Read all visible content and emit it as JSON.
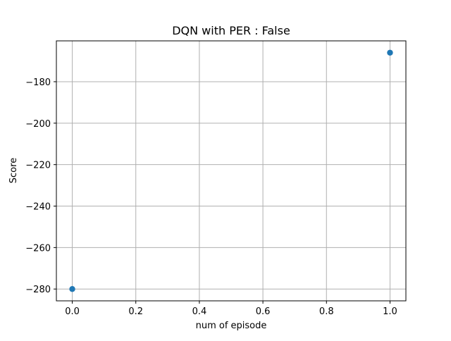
{
  "chart_data": {
    "type": "scatter",
    "title": "DQN with PER : False",
    "xlabel": "num of episode",
    "ylabel": "Score",
    "points": [
      {
        "x": 0.0,
        "y": -280.0
      },
      {
        "x": 1.0,
        "y": -166.0
      }
    ],
    "xlim": [
      -0.05,
      1.05
    ],
    "ylim": [
      -285.7,
      -160.3
    ],
    "xticks": [
      0.0,
      0.2,
      0.4,
      0.6,
      0.8,
      1.0
    ],
    "xtick_labels": [
      "0.0",
      "0.2",
      "0.4",
      "0.6",
      "0.8",
      "1.0"
    ],
    "yticks": [
      -280,
      -260,
      -240,
      -220,
      -200,
      -180
    ],
    "ytick_labels": [
      "−280",
      "−260",
      "−240",
      "−220",
      "−200",
      "−180"
    ],
    "grid": true,
    "marker_color": "#1f77b4"
  }
}
